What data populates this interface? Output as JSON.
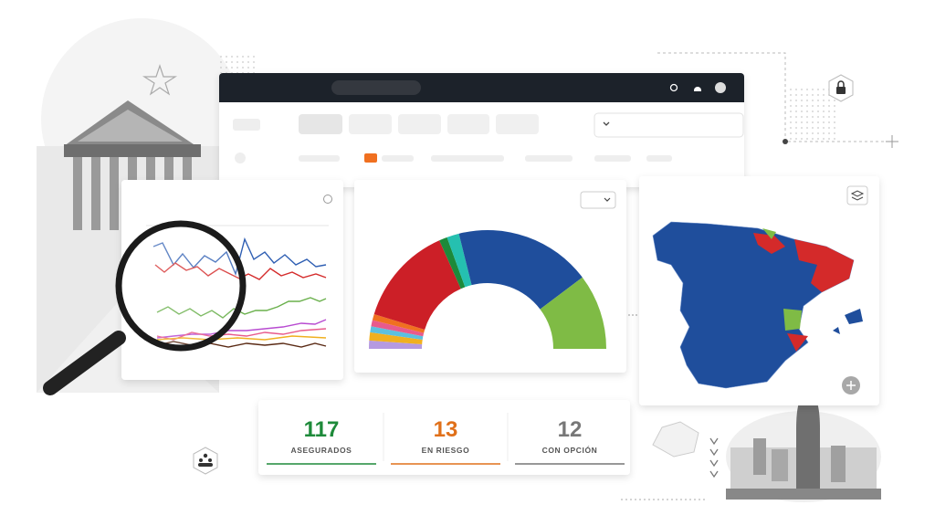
{
  "stats": [
    {
      "value": 117,
      "label": "ASEGURADOS"
    },
    {
      "value": 13,
      "label": "EN RIESGO"
    },
    {
      "value": 12,
      "label": "CON OPCIÓN"
    }
  ]
}
